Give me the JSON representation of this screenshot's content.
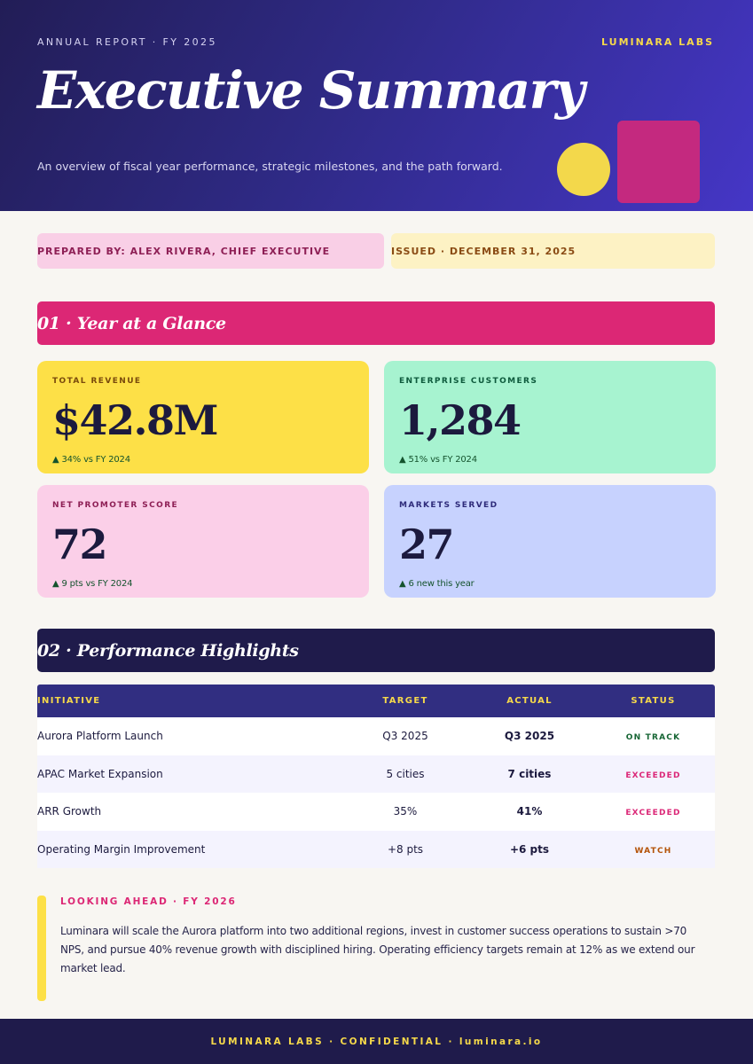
{
  "header": {
    "eyebrow": "ANNUAL REPORT · FY 2025",
    "brand": "LUMINARA LABS",
    "title": "Executive Summary",
    "subtitle": "An overview of fiscal year performance, strategic milestones, and the path forward."
  },
  "meta": {
    "prepared_by": "PREPARED BY: ALEX RIVERA, CHIEF EXECUTIVE",
    "issued": "ISSUED · DECEMBER 31, 2025"
  },
  "section1": {
    "title": "01 · Year at a Glance",
    "kpis": [
      {
        "label": "TOTAL REVENUE",
        "value": "$42.8M",
        "trend": "▲ 34% vs FY 2024"
      },
      {
        "label": "ENTERPRISE CUSTOMERS",
        "value": "1,284",
        "trend": "▲ 51% vs FY 2024"
      },
      {
        "label": "NET PROMOTER SCORE",
        "value": "72",
        "trend": "▲ 9 pts vs FY 2024"
      },
      {
        "label": "MARKETS SERVED",
        "value": "27",
        "trend": "▲ 6 new this year"
      }
    ]
  },
  "section2": {
    "title": "02 · Performance Highlights",
    "columns": [
      "INITIATIVE",
      "TARGET",
      "ACTUAL",
      "STATUS"
    ],
    "rows": [
      {
        "initiative": "Aurora Platform Launch",
        "target": "Q3 2025",
        "actual": "Q3 2025",
        "status": "ON TRACK",
        "status_color": "#166534"
      },
      {
        "initiative": "APAC Market Expansion",
        "target": "5 cities",
        "actual": "7 cities",
        "status": "EXCEEDED",
        "status_color": "#db2777"
      },
      {
        "initiative": "ARR Growth",
        "target": "35%",
        "actual": "41%",
        "status": "EXCEEDED",
        "status_color": "#db2777"
      },
      {
        "initiative": "Operating Margin Improvement",
        "target": "+8 pts",
        "actual": "+6 pts",
        "status": "WATCH",
        "status_color": "#b45309"
      }
    ]
  },
  "outlook": {
    "label": "LOOKING AHEAD · FY 2026",
    "text": "Luminara will scale the Aurora platform into two additional regions, invest in customer success operations to sustain >70 NPS, and pursue 40% revenue growth with disciplined hiring. Operating efficiency targets remain at 12% as we extend our market lead."
  },
  "footer": {
    "text": "LUMINARA LABS · CONFIDENTIAL · luminara.io"
  },
  "colors": {
    "hero_start": "#221d56",
    "hero_end": "#4536c6",
    "accent_pink": "#dc2775",
    "accent_yellow": "#fde047",
    "navy": "#1f1b4b"
  }
}
